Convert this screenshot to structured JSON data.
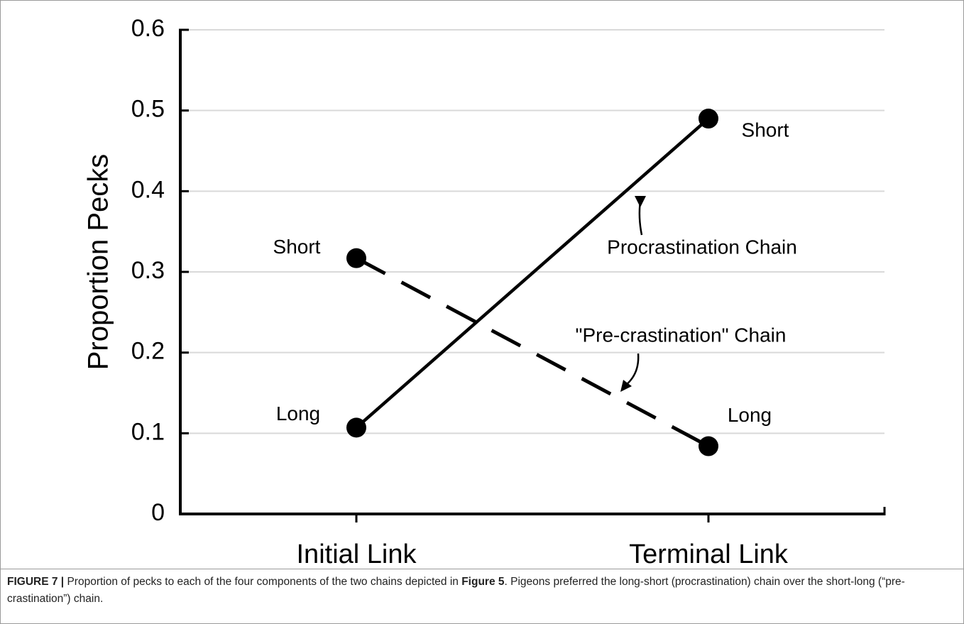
{
  "chart_data": {
    "type": "line",
    "y_label": "Proportion Pecks",
    "categories": [
      "Initial Link",
      "Terminal Link"
    ],
    "ylim": [
      0,
      0.6
    ],
    "yticks": [
      0,
      0.1,
      0.2,
      0.3,
      0.4,
      0.5,
      0.6
    ],
    "grid": true,
    "series": [
      {
        "name": "Procrastination Chain",
        "color": "#000000",
        "dash": false,
        "values": [
          0.107,
          0.49
        ],
        "point_labels": [
          "Long",
          "Short"
        ]
      },
      {
        "name": "\"Pre-crastination\" Chain",
        "color": "#000000",
        "dash": true,
        "values": [
          0.317,
          0.084
        ],
        "point_labels": [
          "Short",
          "Long"
        ]
      }
    ]
  },
  "caption": {
    "label": "FIGURE 7 |",
    "text": "Proportion of pecks to each of the four components of the two chains depicted in",
    "reference": "Figure 5",
    "text_end": ". Pigeons preferred the long-short (procrastination) chain over the short-long (“pre-crastination”) chain."
  }
}
